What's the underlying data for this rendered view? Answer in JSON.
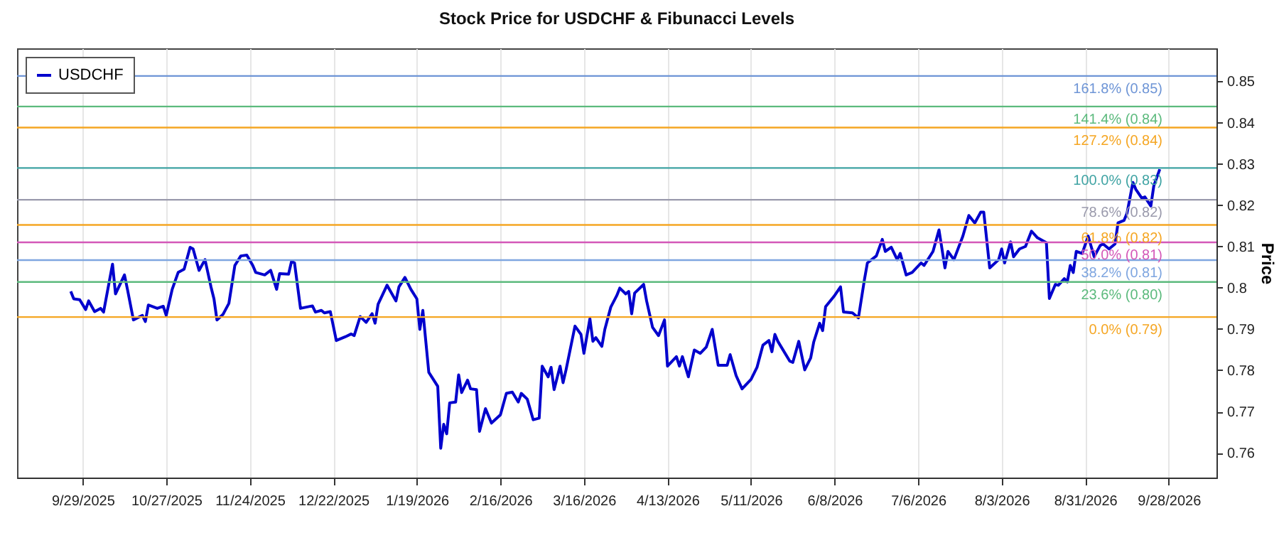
{
  "chart_data": {
    "type": "line",
    "title": "Stock Price for USDCHF & Fibunacci Levels",
    "ylabel": "Price",
    "x": [
      "2025-09-25",
      "2025-09-26",
      "2025-09-28",
      "2025-09-30",
      "2025-10-01",
      "2025-10-03",
      "2025-10-05",
      "2025-10-06",
      "2025-10-09",
      "2025-10-10",
      "2025-10-13",
      "2025-10-14",
      "2025-10-16",
      "2025-10-19",
      "2025-10-20",
      "2025-10-21",
      "2025-10-24",
      "2025-10-26",
      "2025-10-27",
      "2025-10-29",
      "2025-10-31",
      "2025-11-02",
      "2025-11-04",
      "2025-11-05",
      "2025-11-07",
      "2025-11-09",
      "2025-11-11",
      "2025-11-12",
      "2025-11-13",
      "2025-11-15",
      "2025-11-17",
      "2025-11-19",
      "2025-11-21",
      "2025-11-23",
      "2025-11-25",
      "2025-11-26",
      "2025-11-29",
      "2025-12-01",
      "2025-12-03",
      "2025-12-04",
      "2025-12-07",
      "2025-12-08",
      "2025-12-09",
      "2025-12-11",
      "2025-12-15",
      "2025-12-16",
      "2025-12-18",
      "2025-12-19",
      "2025-12-21",
      "2025-12-23",
      "2025-12-26",
      "2025-12-28",
      "2025-12-29",
      "2025-12-31",
      "2026-01-02",
      "2026-01-04",
      "2026-01-05",
      "2026-01-06",
      "2026-01-09",
      "2026-01-12",
      "2026-01-13",
      "2026-01-15",
      "2026-01-17",
      "2026-01-19",
      "2026-01-20",
      "2026-01-21",
      "2026-01-23",
      "2026-01-26",
      "2026-01-27",
      "2026-01-28",
      "2026-01-29",
      "2026-01-30",
      "2026-02-01",
      "2026-02-02",
      "2026-02-03",
      "2026-02-05",
      "2026-02-06",
      "2026-02-08",
      "2026-02-09",
      "2026-02-11",
      "2026-02-13",
      "2026-02-16",
      "2026-02-18",
      "2026-02-20",
      "2026-02-22",
      "2026-02-23",
      "2026-02-25",
      "2026-02-27",
      "2026-03-01",
      "2026-03-02",
      "2026-03-04",
      "2026-03-05",
      "2026-03-06",
      "2026-03-08",
      "2026-03-09",
      "2026-03-10",
      "2026-03-13",
      "2026-03-15",
      "2026-03-16",
      "2026-03-18",
      "2026-03-19",
      "2026-03-20",
      "2026-03-22",
      "2026-03-23",
      "2026-03-25",
      "2026-03-27",
      "2026-03-28",
      "2026-03-30",
      "2026-03-31",
      "2026-04-01",
      "2026-04-02",
      "2026-04-05",
      "2026-04-06",
      "2026-04-08",
      "2026-04-10",
      "2026-04-12",
      "2026-04-13",
      "2026-04-16",
      "2026-04-17",
      "2026-04-18",
      "2026-04-20",
      "2026-04-22",
      "2026-04-24",
      "2026-04-26",
      "2026-04-28",
      "2026-04-30",
      "2026-05-03",
      "2026-05-04",
      "2026-05-06",
      "2026-05-08",
      "2026-05-11",
      "2026-05-13",
      "2026-05-15",
      "2026-05-17",
      "2026-05-18",
      "2026-05-19",
      "2026-05-20",
      "2026-05-24",
      "2026-05-25",
      "2026-05-27",
      "2026-05-29",
      "2026-05-31",
      "2026-06-01",
      "2026-06-03",
      "2026-06-04",
      "2026-06-05",
      "2026-06-08",
      "2026-06-10",
      "2026-06-11",
      "2026-06-14",
      "2026-06-16",
      "2026-06-18",
      "2026-06-19",
      "2026-06-22",
      "2026-06-24",
      "2026-06-25",
      "2026-06-27",
      "2026-06-29",
      "2026-06-30",
      "2026-07-02",
      "2026-07-04",
      "2026-07-07",
      "2026-07-08",
      "2026-07-11",
      "2026-07-13",
      "2026-07-15",
      "2026-07-16",
      "2026-07-18",
      "2026-07-21",
      "2026-07-23",
      "2026-07-25",
      "2026-07-27",
      "2026-07-28",
      "2026-07-30",
      "2026-08-02",
      "2026-08-03",
      "2026-08-04",
      "2026-08-06",
      "2026-08-07",
      "2026-08-09",
      "2026-08-11",
      "2026-08-13",
      "2026-08-15",
      "2026-08-18",
      "2026-08-19",
      "2026-08-21",
      "2026-08-22",
      "2026-08-24",
      "2026-08-25",
      "2026-08-26",
      "2026-08-27",
      "2026-08-28",
      "2026-08-30",
      "2026-09-01",
      "2026-09-03",
      "2026-09-05",
      "2026-09-06",
      "2026-09-08",
      "2026-09-10",
      "2026-09-11",
      "2026-09-13",
      "2026-09-14",
      "2026-09-16",
      "2026-09-17",
      "2026-09-19",
      "2026-09-20",
      "2026-09-22",
      "2026-09-23",
      "2026-09-25"
    ],
    "series": [
      {
        "name": "USDCHF",
        "color": "#0000cd",
        "values": [
          0.7991,
          0.7973,
          0.7971,
          0.7947,
          0.7968,
          0.7942,
          0.795,
          0.7941,
          0.8057,
          0.7985,
          0.8031,
          0.7996,
          0.7922,
          0.7933,
          0.7918,
          0.7958,
          0.795,
          0.7955,
          0.7933,
          0.7996,
          0.8037,
          0.8045,
          0.8098,
          0.8094,
          0.8042,
          0.8068,
          0.8002,
          0.7973,
          0.7922,
          0.7935,
          0.7962,
          0.8054,
          0.8077,
          0.8079,
          0.8054,
          0.8037,
          0.8031,
          0.8042,
          0.7996,
          0.8034,
          0.8033,
          0.8064,
          0.806,
          0.795,
          0.7956,
          0.7941,
          0.7945,
          0.7939,
          0.7942,
          0.7872,
          0.7881,
          0.7888,
          0.7884,
          0.793,
          0.7916,
          0.7937,
          0.7914,
          0.796,
          0.8006,
          0.7968,
          0.8002,
          0.8025,
          0.7996,
          0.7973,
          0.7899,
          0.7945,
          0.7795,
          0.7761,
          0.7611,
          0.7669,
          0.7646,
          0.7721,
          0.7723,
          0.7789,
          0.7746,
          0.7776,
          0.7755,
          0.7753,
          0.7652,
          0.7707,
          0.7672,
          0.7692,
          0.7744,
          0.7747,
          0.7723,
          0.7744,
          0.773,
          0.768,
          0.7684,
          0.781,
          0.7784,
          0.7807,
          0.7753,
          0.781,
          0.777,
          0.7801,
          0.7907,
          0.7887,
          0.7841,
          0.7925,
          0.787,
          0.7879,
          0.7858,
          0.7899,
          0.7953,
          0.7981,
          0.7999,
          0.7985,
          0.7991,
          0.7937,
          0.7987,
          0.8008,
          0.7968,
          0.7904,
          0.7884,
          0.7922,
          0.781,
          0.7833,
          0.781,
          0.7833,
          0.7784,
          0.7849,
          0.7841,
          0.7856,
          0.7899,
          0.7812,
          0.7812,
          0.7838,
          0.7787,
          0.7755,
          0.7778,
          0.7807,
          0.7861,
          0.7872,
          0.7845,
          0.7887,
          0.787,
          0.7822,
          0.7819,
          0.787,
          0.7801,
          0.783,
          0.7868,
          0.7914,
          0.7896,
          0.7954,
          0.7981,
          0.8002,
          0.7941,
          0.7939,
          0.7927,
          0.8019,
          0.806,
          0.8077,
          0.8117,
          0.8088,
          0.8098,
          0.8068,
          0.8083,
          0.8031,
          0.8037,
          0.806,
          0.8054,
          0.8088,
          0.814,
          0.8048,
          0.8088,
          0.8068,
          0.8125,
          0.8175,
          0.8157,
          0.8183,
          0.8183,
          0.8048,
          0.8068,
          0.8094,
          0.806,
          0.8111,
          0.8075,
          0.8094,
          0.81,
          0.8137,
          0.8121,
          0.8109,
          0.7974,
          0.8008,
          0.8006,
          0.8022,
          0.8014,
          0.8054,
          0.8037,
          0.8088,
          0.8083,
          0.8125,
          0.8075,
          0.8102,
          0.8106,
          0.8094,
          0.8106,
          0.8157,
          0.8163,
          0.818,
          0.8255,
          0.8238,
          0.8217,
          0.822,
          0.8198,
          0.8247,
          0.8287
        ]
      }
    ],
    "xlim": [
      "2025-09-07",
      "2026-10-14"
    ],
    "xticks": [
      {
        "value": "2025-09-29",
        "label": "9/29/2025"
      },
      {
        "value": "2025-10-27",
        "label": "10/27/2025"
      },
      {
        "value": "2025-11-24",
        "label": "11/24/2025"
      },
      {
        "value": "2025-12-22",
        "label": "12/22/2025"
      },
      {
        "value": "2026-01-19",
        "label": "1/19/2026"
      },
      {
        "value": "2026-02-16",
        "label": "2/16/2026"
      },
      {
        "value": "2026-03-16",
        "label": "3/16/2026"
      },
      {
        "value": "2026-04-13",
        "label": "4/13/2026"
      },
      {
        "value": "2026-05-11",
        "label": "5/11/2026"
      },
      {
        "value": "2026-06-08",
        "label": "6/8/2026"
      },
      {
        "value": "2026-07-06",
        "label": "7/6/2026"
      },
      {
        "value": "2026-08-03",
        "label": "8/3/2026"
      },
      {
        "value": "2026-08-31",
        "label": "8/31/2026"
      },
      {
        "value": "2026-09-28",
        "label": "9/28/2026"
      }
    ],
    "ylim": [
      0.754,
      0.858
    ],
    "yticks": [
      0.76,
      0.77,
      0.78,
      0.79,
      0.8,
      0.81,
      0.82,
      0.83,
      0.84,
      0.85
    ],
    "ref_lines": [
      {
        "axis": "y",
        "value": 0.7929,
        "label": "0.0% (0.79)",
        "color": "#f5a623"
      },
      {
        "axis": "y",
        "value": 0.8014,
        "label": "23.6% (0.80)",
        "color": "#5cba7d"
      },
      {
        "axis": "y",
        "value": 0.8067,
        "label": "38.2% (0.81)",
        "color": "#7fa6e0"
      },
      {
        "axis": "y",
        "value": 0.811,
        "label": "50.0% (0.81)",
        "color": "#d458b8"
      },
      {
        "axis": "y",
        "value": 0.8152,
        "label": "61.8% (0.82)",
        "color": "#f5a623"
      },
      {
        "axis": "y",
        "value": 0.8213,
        "label": "78.6% (0.82)",
        "color": "#9a9aac"
      },
      {
        "axis": "y",
        "value": 0.829,
        "label": "100.0% (0.83)",
        "color": "#3fa3a3"
      },
      {
        "axis": "y",
        "value": 0.8388,
        "label": "127.2% (0.84)",
        "color": "#f5a623"
      },
      {
        "axis": "y",
        "value": 0.8439,
        "label": "141.4% (0.84)",
        "color": "#5cba7d"
      },
      {
        "axis": "y",
        "value": 0.8513,
        "label": "161.8% (0.85)",
        "color": "#6e95d6"
      }
    ],
    "grid": "x",
    "legend": "top left"
  }
}
